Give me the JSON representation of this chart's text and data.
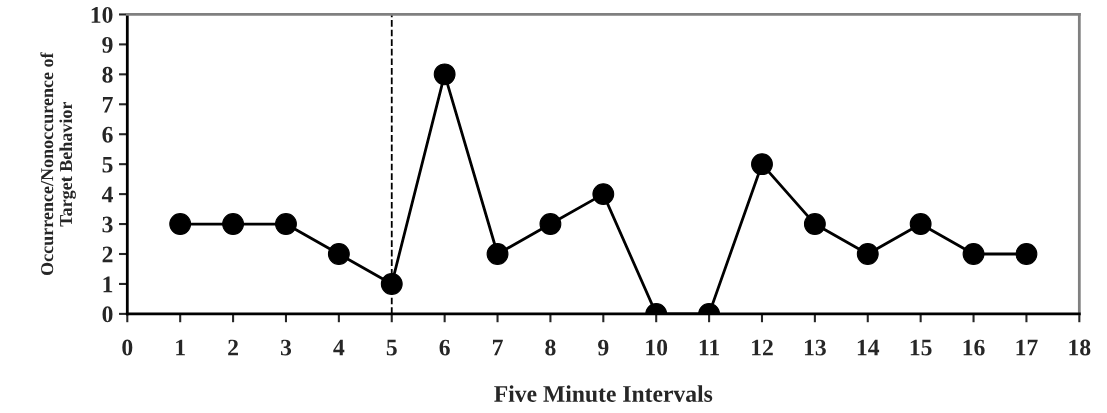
{
  "chart_data": {
    "type": "line",
    "xlabel": "Five Minute Intervals",
    "ylabel": "Occurrence/Nonoccurence of\nTarget Behavior",
    "x": [
      1,
      2,
      3,
      4,
      5,
      6,
      7,
      8,
      9,
      10,
      11,
      12,
      13,
      14,
      15,
      16,
      17
    ],
    "series": [
      {
        "color": "#000000",
        "values": [
          3,
          3,
          3,
          2,
          1,
          8,
          2,
          3,
          4,
          0,
          0,
          5,
          3,
          2,
          3,
          2,
          2
        ]
      }
    ],
    "xlim": [
      0,
      18
    ],
    "xticks": [
      0,
      1,
      2,
      3,
      4,
      5,
      6,
      7,
      8,
      9,
      10,
      11,
      12,
      13,
      14,
      15,
      16,
      17,
      18
    ],
    "ylim": [
      0,
      10
    ],
    "yticks": [
      0,
      1,
      2,
      3,
      4,
      5,
      6,
      7,
      8,
      9,
      10
    ],
    "ref_lines": [
      {
        "axis": "x",
        "value": 5,
        "color": "#000000",
        "line_style": "dashed"
      }
    ],
    "marker": "circle",
    "line_style": "solid",
    "grid": false,
    "legend": false
  }
}
